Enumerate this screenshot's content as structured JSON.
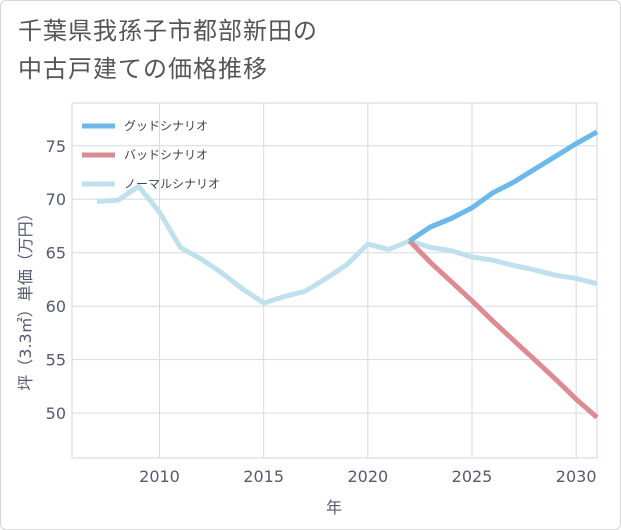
{
  "title": {
    "line1": "千葉県我孫子市都部新田の",
    "line2": "中古戸建ての価格推移"
  },
  "chart_data": {
    "type": "line",
    "xlabel": "年",
    "ylabel": "坪（3.3㎡）単価（万円）",
    "xlim": [
      2005.8,
      2031
    ],
    "ylim": [
      45.8,
      79
    ],
    "xticks": [
      2010,
      2015,
      2020,
      2025,
      2030
    ],
    "yticks": [
      50,
      55,
      60,
      65,
      70,
      75
    ],
    "grid": true,
    "legend_position": "top-left",
    "series": [
      {
        "name": "グッドシナリオ",
        "color": "#6cb8ea",
        "x": [
          2022,
          2023,
          2024,
          2025,
          2026,
          2027,
          2028,
          2029,
          2030,
          2031
        ],
        "y": [
          66.1,
          67.4,
          68.2,
          69.2,
          70.6,
          71.6,
          72.8,
          74.0,
          75.2,
          76.3
        ]
      },
      {
        "name": "バッドシナリオ",
        "color": "#dd8a93",
        "x": [
          2022,
          2023,
          2024,
          2025,
          2026,
          2027,
          2028,
          2029,
          2030,
          2031
        ],
        "y": [
          66.1,
          64.1,
          62.3,
          60.5,
          58.6,
          56.8,
          55.0,
          53.2,
          51.3,
          49.6
        ]
      },
      {
        "name": "ノーマルシナリオ",
        "color": "#c0e0ee",
        "x": [
          2007,
          2008,
          2009,
          2010,
          2011,
          2012,
          2013,
          2014,
          2015,
          2016,
          2017,
          2018,
          2019,
          2020,
          2021,
          2022,
          2023,
          2024,
          2025,
          2026,
          2027,
          2028,
          2029,
          2030,
          2031
        ],
        "y": [
          69.8,
          69.9,
          71.2,
          68.8,
          65.5,
          64.4,
          63.1,
          61.6,
          60.3,
          60.9,
          61.4,
          62.6,
          63.9,
          65.8,
          65.3,
          66.1,
          65.5,
          65.2,
          64.6,
          64.3,
          63.8,
          63.4,
          62.9,
          62.6,
          62.1
        ]
      }
    ]
  }
}
